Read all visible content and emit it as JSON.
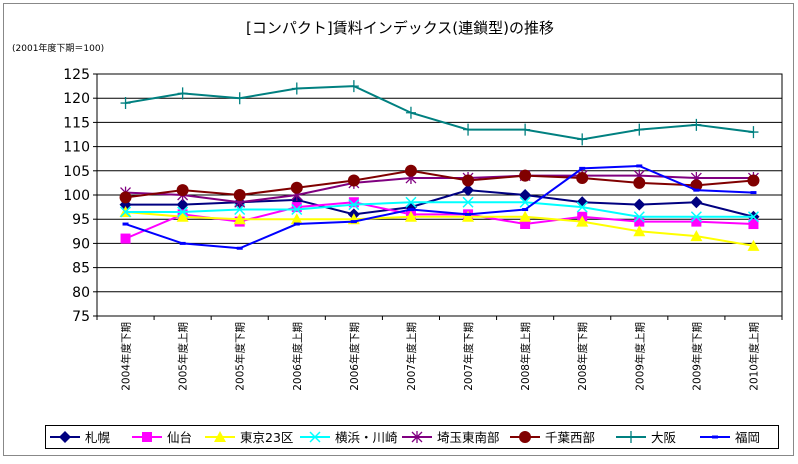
{
  "chart_data": {
    "type": "line",
    "title": "[コンパクト]賃料インデックス(連鎖型)の推移",
    "subtitle": "(2001年度下期＝100)",
    "xlabel": "",
    "ylabel": "",
    "ylim": [
      75,
      125
    ],
    "yticks": [
      75,
      80,
      85,
      90,
      95,
      100,
      105,
      110,
      115,
      120,
      125
    ],
    "grid": true,
    "legend_position": "bottom",
    "categories": [
      "2004年度下期",
      "2005年度上期",
      "2005年度下期",
      "2006年度上期",
      "2006年度下期",
      "2007年度上期",
      "2007年度下期",
      "2008年度上期",
      "2008年度下期",
      "2009年度上期",
      "2009年度下期",
      "2010年度上期"
    ],
    "series": [
      {
        "name": "札幌",
        "color": "#000080",
        "marker": "diamond",
        "values": [
          98,
          98,
          98.5,
          99,
          96,
          97.5,
          101,
          100,
          98.5,
          98,
          98.5,
          95.5
        ]
      },
      {
        "name": "仙台",
        "color": "#FF00FF",
        "marker": "square",
        "values": [
          91,
          96,
          94.5,
          97.5,
          98.5,
          96,
          96,
          94,
          95.5,
          94.5,
          94.5,
          94
        ]
      },
      {
        "name": "東京23区",
        "color": "#FFFF00",
        "marker": "triangle",
        "values": [
          96.5,
          95.5,
          95,
          95,
          95,
          95.5,
          95.5,
          95.5,
          94.5,
          92.5,
          91.5,
          89.5
        ]
      },
      {
        "name": "横浜・川崎",
        "color": "#00FFFF",
        "marker": "x",
        "values": [
          96.5,
          96.5,
          97,
          97,
          98,
          98.5,
          98.5,
          98.5,
          97.5,
          95.5,
          95.5,
          95.5
        ]
      },
      {
        "name": "埼玉東南部",
        "color": "#800080",
        "marker": "asterisk",
        "values": [
          100.5,
          100,
          98.5,
          100,
          102.5,
          103.5,
          103.5,
          104,
          104,
          104,
          103.5,
          103.5
        ]
      },
      {
        "name": "千葉西部",
        "color": "#800000",
        "marker": "circle",
        "values": [
          99.5,
          101,
          100,
          101.5,
          103,
          105,
          103,
          104,
          103.5,
          102.5,
          102,
          103
        ]
      },
      {
        "name": "大阪",
        "color": "#008080",
        "marker": "plus",
        "values": [
          119,
          121,
          120,
          122,
          122.5,
          117,
          113.5,
          113.5,
          111.5,
          113.5,
          114.5,
          113
        ]
      },
      {
        "name": "福岡",
        "color": "#0000FF",
        "marker": "dash",
        "values": [
          94,
          90,
          89,
          94,
          94.5,
          97,
          96,
          97,
          105.5,
          106,
          101,
          100.5
        ]
      }
    ]
  }
}
